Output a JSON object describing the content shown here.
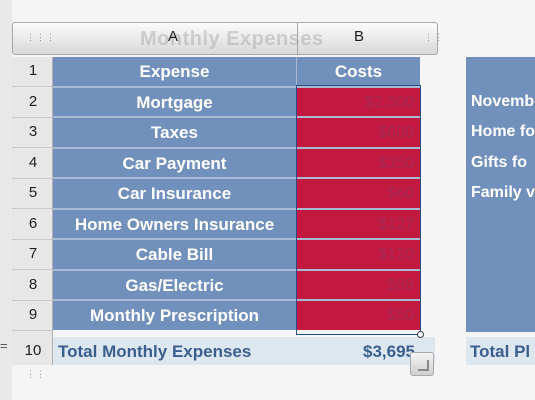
{
  "sheet": {
    "ghost_title": "Monthly Expenses",
    "column_letters": [
      "A",
      "B"
    ],
    "row_numbers": [
      "1",
      "2",
      "3",
      "4",
      "5",
      "6",
      "7",
      "8",
      "9",
      "10"
    ],
    "header": {
      "expense": "Expense",
      "costs": "Costs"
    },
    "rows": [
      {
        "expense": "Mortgage",
        "cost": "$2,300"
      },
      {
        "expense": "Taxes",
        "cost": "$600"
      },
      {
        "expense": "Car Payment",
        "cost": "$350"
      },
      {
        "expense": "Car Insurance",
        "cost": "$60"
      },
      {
        "expense": "Home Owners Insurance",
        "cost": "$127"
      },
      {
        "expense": "Cable Bill",
        "cost": "$120"
      },
      {
        "expense": "Gas/Electric",
        "cost": "$88"
      },
      {
        "expense": "Monthly Prescription",
        "cost": "$50"
      }
    ],
    "footer": {
      "label": "Total Monthly Expenses",
      "value": "$3,695"
    }
  },
  "right_table": {
    "items": [
      "Novemb",
      "Home fo",
      "Gifts fo",
      "Family v"
    ],
    "footer_label": "Total Pl"
  },
  "formula_marker": "=",
  "colors": {
    "header_fill": "#7190bb",
    "highlight_fill": "#c3183f",
    "footer_fill": "#dde7f0",
    "footer_text": "#3a5e8e"
  }
}
